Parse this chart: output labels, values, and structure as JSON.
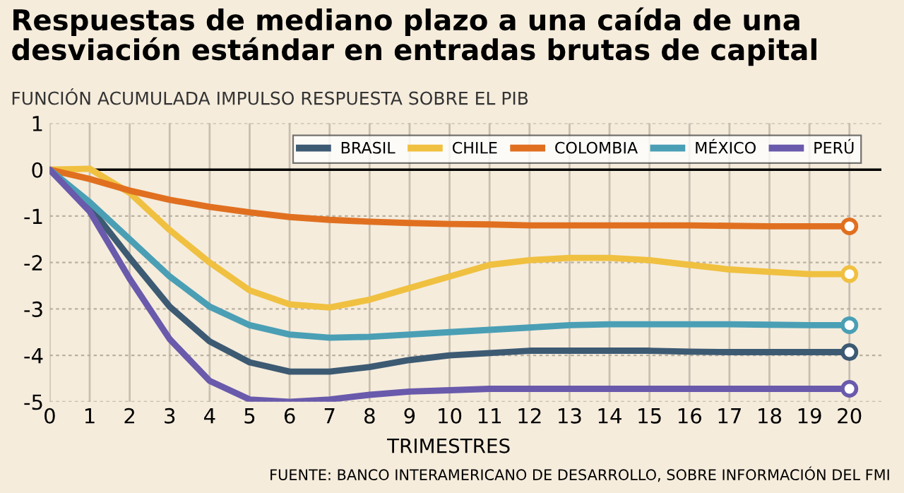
{
  "chart_data": {
    "type": "line",
    "title": "Respuestas de mediano plazo a una caída de una\ndesviación estándar en entradas brutas de capital",
    "subtitle": "FUNCIÓN ACUMULADA IMPULSO RESPUESTA SOBRE EL PIB",
    "xlabel": "TRIMESTRES",
    "annotations": [
      "FUENTE: BANCO INTERAMERICANO DE DESARROLLO, SOBRE INFORMACIÓN DEL FMI"
    ],
    "x": [
      0,
      1,
      2,
      3,
      4,
      5,
      6,
      7,
      8,
      9,
      10,
      11,
      12,
      13,
      14,
      15,
      16,
      17,
      18,
      19,
      20
    ],
    "series": [
      {
        "name": "BRASIL",
        "color": "#3d5a73",
        "values": [
          0,
          -0.8,
          -1.9,
          -2.95,
          -3.7,
          -4.15,
          -4.35,
          -4.35,
          -4.25,
          -4.1,
          -4.0,
          -3.95,
          -3.9,
          -3.9,
          -3.9,
          -3.9,
          -3.92,
          -3.93,
          -3.93,
          -3.93,
          -3.93
        ]
      },
      {
        "name": "CHILE",
        "color": "#f0c040",
        "values": [
          0,
          0.02,
          -0.5,
          -1.3,
          -2.0,
          -2.6,
          -2.9,
          -2.97,
          -2.8,
          -2.55,
          -2.3,
          -2.05,
          -1.95,
          -1.9,
          -1.9,
          -1.95,
          -2.05,
          -2.15,
          -2.2,
          -2.25,
          -2.25
        ]
      },
      {
        "name": "COLOMBIA",
        "color": "#e07020",
        "values": [
          0,
          -0.2,
          -0.45,
          -0.65,
          -0.8,
          -0.92,
          -1.02,
          -1.08,
          -1.12,
          -1.15,
          -1.17,
          -1.18,
          -1.2,
          -1.2,
          -1.2,
          -1.2,
          -1.2,
          -1.21,
          -1.22,
          -1.22,
          -1.22
        ]
      },
      {
        "name": "MÉXICO",
        "color": "#4a9fb5",
        "values": [
          0,
          -0.7,
          -1.5,
          -2.3,
          -2.95,
          -3.35,
          -3.55,
          -3.62,
          -3.6,
          -3.55,
          -3.5,
          -3.45,
          -3.4,
          -3.35,
          -3.33,
          -3.33,
          -3.33,
          -3.33,
          -3.34,
          -3.35,
          -3.35
        ]
      },
      {
        "name": "PERÚ",
        "color": "#6a5aac",
        "values": [
          0,
          -0.9,
          -2.35,
          -3.65,
          -4.55,
          -4.95,
          -5.0,
          -4.95,
          -4.85,
          -4.78,
          -4.75,
          -4.72,
          -4.72,
          -4.72,
          -4.72,
          -4.72,
          -4.72,
          -4.72,
          -4.72,
          -4.72,
          -4.72
        ]
      }
    ],
    "xlim": [
      0,
      20.8
    ],
    "xticks": [
      0,
      1,
      2,
      3,
      4,
      5,
      6,
      7,
      8,
      9,
      10,
      11,
      12,
      13,
      14,
      15,
      16,
      17,
      18,
      19,
      20
    ],
    "ylim": [
      -5,
      1
    ],
    "yticks": [
      -5,
      -4,
      -3,
      -2,
      -1,
      0,
      1
    ],
    "ref_lines": [
      {
        "axis": "y",
        "value": 0,
        "color": "#000000"
      }
    ],
    "grid": true,
    "legend": "top right",
    "line_style": "solid"
  }
}
